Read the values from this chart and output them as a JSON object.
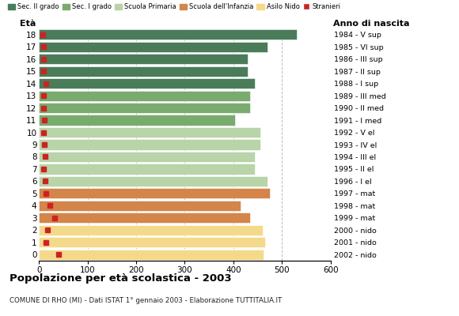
{
  "ages": [
    18,
    17,
    16,
    15,
    14,
    13,
    12,
    11,
    10,
    9,
    8,
    7,
    6,
    5,
    4,
    3,
    2,
    1,
    0
  ],
  "years": [
    "1984 - V sup",
    "1985 - VI sup",
    "1986 - III sup",
    "1987 - II sup",
    "1988 - I sup",
    "1989 - III med",
    "1990 - II med",
    "1991 - I med",
    "1992 - V el",
    "1993 - IV el",
    "1994 - III el",
    "1995 - II el",
    "1996 - I el",
    "1997 - mat",
    "1998 - mat",
    "1999 - mat",
    "2000 - nido",
    "2001 - nido",
    "2002 - nido"
  ],
  "bar_values": [
    530,
    470,
    430,
    430,
    445,
    435,
    435,
    403,
    455,
    455,
    445,
    445,
    470,
    475,
    415,
    435,
    460,
    465,
    462
  ],
  "stranieri": [
    8,
    9,
    10,
    9,
    14,
    10,
    9,
    11,
    10,
    11,
    13,
    10,
    12,
    14,
    22,
    32,
    18,
    14,
    40
  ],
  "bar_colors": [
    "#4a7c59",
    "#4a7c59",
    "#4a7c59",
    "#4a7c59",
    "#4a7c59",
    "#7aab6e",
    "#7aab6e",
    "#7aab6e",
    "#b8d4a8",
    "#b8d4a8",
    "#b8d4a8",
    "#b8d4a8",
    "#b8d4a8",
    "#d4854a",
    "#d4854a",
    "#d4854a",
    "#f5d98b",
    "#f5d98b",
    "#f5d98b"
  ],
  "stranieri_color": "#cc2222",
  "legend_labels": [
    "Sec. II grado",
    "Sec. I grado",
    "Scuola Primaria",
    "Scuola dell'Infanzia",
    "Asilo Nido",
    "Stranieri"
  ],
  "legend_colors": [
    "#4a7c59",
    "#7aab6e",
    "#b8d4a8",
    "#d4854a",
    "#f5d98b",
    "#cc2222"
  ],
  "title": "Popolazione per età scolastica - 2003",
  "subtitle": "COMUNE DI RHO (MI) - Dati ISTAT 1° gennaio 2003 - Elaborazione TUTTITALIA.IT",
  "eta_label": "Età",
  "anno_label": "Anno di nascita",
  "xlim": [
    0,
    600
  ],
  "xticks": [
    0,
    100,
    200,
    300,
    400,
    500,
    600
  ],
  "bg_color": "#ffffff",
  "grid_color": "#bbbbbb"
}
